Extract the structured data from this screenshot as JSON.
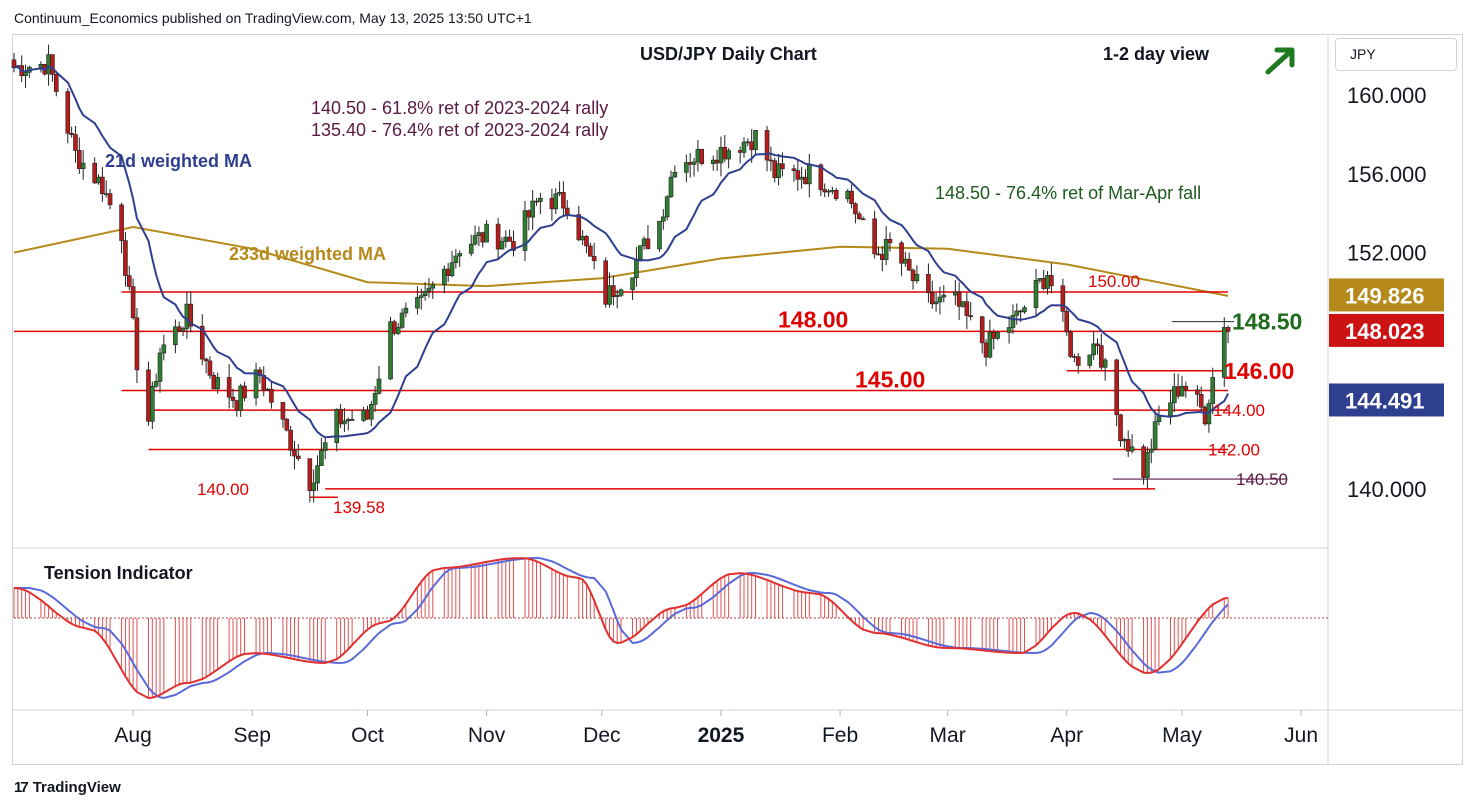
{
  "header": {
    "publisher_line": "Continuum_Economics published on TradingView.com, May 13, 2025 13:50 UTC+1",
    "currency": "JPY"
  },
  "footer": {
    "brand": "TradingView",
    "logo": "17"
  },
  "colors": {
    "candle_up": "#2e7d32",
    "candle_down": "#b71c1c",
    "ma21": "#2f3f8f",
    "ma233": "#b58a1a",
    "level": "#e00000",
    "fib150": "#5a1a44",
    "arrow": "#1e7a1e",
    "current": "#cc1212",
    "ma233_badge": "#b58a1a",
    "ma21_badge": "#2f3f8f"
  },
  "chart_data": {
    "type": "candlestick",
    "title": "USD/JPY Daily Chart",
    "subtitle": "1-2 day view",
    "direction": "up-arrow-icon",
    "ylim": [
      137.0,
      163.0
    ],
    "y_ticks": [
      "160.000",
      "156.000",
      "152.000",
      "140.000"
    ],
    "x_ticks": [
      {
        "label": "Aug",
        "date": "2024-08-01",
        "bold": false
      },
      {
        "label": "Sep",
        "date": "2024-09-01",
        "bold": false
      },
      {
        "label": "Oct",
        "date": "2024-10-01",
        "bold": false
      },
      {
        "label": "Nov",
        "date": "2024-11-01",
        "bold": false
      },
      {
        "label": "Dec",
        "date": "2024-12-01",
        "bold": false
      },
      {
        "label": "2025",
        "date": "2025-01-01",
        "bold": true
      },
      {
        "label": "Feb",
        "date": "2025-02-01",
        "bold": false
      },
      {
        "label": "Mar",
        "date": "2025-03-01",
        "bold": false
      },
      {
        "label": "Apr",
        "date": "2025-04-01",
        "bold": false
      },
      {
        "label": "May",
        "date": "2025-05-01",
        "bold": false
      },
      {
        "label": "Jun",
        "date": "2025-06-01",
        "bold": false
      }
    ],
    "x_range": [
      "2024-07-01",
      "2025-06-08"
    ],
    "closes": [
      {
        "date": "2024-07-01",
        "close": 161.4
      },
      {
        "date": "2024-07-10",
        "close": 161.6
      },
      {
        "date": "2024-07-17",
        "close": 157.0
      },
      {
        "date": "2024-07-24",
        "close": 155.4
      },
      {
        "date": "2024-07-29",
        "close": 153.0
      },
      {
        "date": "2024-08-02",
        "close": 146.5
      },
      {
        "date": "2024-08-05",
        "close": 143.5
      },
      {
        "date": "2024-08-08",
        "close": 147.0
      },
      {
        "date": "2024-08-15",
        "close": 148.8
      },
      {
        "date": "2024-08-22",
        "close": 145.5
      },
      {
        "date": "2024-08-28",
        "close": 144.5
      },
      {
        "date": "2024-09-03",
        "close": 145.8
      },
      {
        "date": "2024-09-10",
        "close": 142.8
      },
      {
        "date": "2024-09-16",
        "close": 140.4
      },
      {
        "date": "2024-09-23",
        "close": 143.5
      },
      {
        "date": "2024-10-01",
        "close": 143.6
      },
      {
        "date": "2024-10-07",
        "close": 148.2
      },
      {
        "date": "2024-10-15",
        "close": 149.3
      },
      {
        "date": "2024-10-25",
        "close": 152.3
      },
      {
        "date": "2024-11-01",
        "close": 152.9
      },
      {
        "date": "2024-11-08",
        "close": 152.6
      },
      {
        "date": "2024-11-15",
        "close": 154.8
      },
      {
        "date": "2024-11-22",
        "close": 154.5
      },
      {
        "date": "2024-12-02",
        "close": 149.7
      },
      {
        "date": "2024-12-09",
        "close": 151.3
      },
      {
        "date": "2024-12-16",
        "close": 153.6
      },
      {
        "date": "2024-12-20",
        "close": 156.6
      },
      {
        "date": "2025-01-03",
        "close": 157.3
      },
      {
        "date": "2025-01-10",
        "close": 157.9
      },
      {
        "date": "2025-01-15",
        "close": 156.0
      },
      {
        "date": "2025-01-24",
        "close": 156.0
      },
      {
        "date": "2025-02-03",
        "close": 155.0
      },
      {
        "date": "2025-02-10",
        "close": 151.9
      },
      {
        "date": "2025-02-14",
        "close": 152.3
      },
      {
        "date": "2025-02-24",
        "close": 149.5
      },
      {
        "date": "2025-03-03",
        "close": 149.5
      },
      {
        "date": "2025-03-11",
        "close": 147.2
      },
      {
        "date": "2025-03-19",
        "close": 148.7
      },
      {
        "date": "2025-03-27",
        "close": 151.0
      },
      {
        "date": "2025-04-03",
        "close": 146.5
      },
      {
        "date": "2025-04-09",
        "close": 147.5
      },
      {
        "date": "2025-04-15",
        "close": 143.0
      },
      {
        "date": "2025-04-21",
        "close": 140.9
      },
      {
        "date": "2025-04-25",
        "close": 143.6
      },
      {
        "date": "2025-05-01",
        "close": 145.4
      },
      {
        "date": "2025-05-07",
        "close": 143.8
      },
      {
        "date": "2025-05-12",
        "close": 148.5
      },
      {
        "date": "2025-05-13",
        "close": 148.0
      }
    ],
    "series": [
      {
        "name": "21d weighted MA",
        "label_color": "#2f3f8f"
      },
      {
        "name": "233d weighted MA",
        "label_color": "#b58a1a"
      }
    ],
    "ma233_points": [
      {
        "date": "2024-07-01",
        "value": 152.0
      },
      {
        "date": "2024-08-01",
        "value": 153.3
      },
      {
        "date": "2024-09-01",
        "value": 152.2
      },
      {
        "date": "2024-10-01",
        "value": 150.5
      },
      {
        "date": "2024-11-01",
        "value": 150.3
      },
      {
        "date": "2024-12-01",
        "value": 150.7
      },
      {
        "date": "2025-01-01",
        "value": 151.7
      },
      {
        "date": "2025-02-01",
        "value": 152.3
      },
      {
        "date": "2025-03-01",
        "value": 152.2
      },
      {
        "date": "2025-04-01",
        "value": 151.4
      },
      {
        "date": "2025-05-13",
        "value": 149.8
      }
    ],
    "levels": [
      {
        "value": 150.0,
        "label": "150.00",
        "from": "2024-07-29",
        "to": "2025-05-13"
      },
      {
        "value": 148.0,
        "label": "148.00",
        "from": "2024-07-01",
        "to": "2025-05-13"
      },
      {
        "value": 146.0,
        "label": "146.00",
        "from": "2025-04-01",
        "to": "2025-05-12"
      },
      {
        "value": 145.0,
        "label": "145.00",
        "from": "2024-07-29",
        "to": "2025-05-13"
      },
      {
        "value": 144.0,
        "label": "144.00",
        "from": "2024-08-05",
        "to": "2025-05-13"
      },
      {
        "value": 142.0,
        "label": "142.00",
        "from": "2024-08-05",
        "to": "2025-05-13"
      },
      {
        "value": 140.0,
        "label": "140.00",
        "from": "2024-09-20",
        "to": "2025-04-24"
      }
    ],
    "resistance": {
      "value": 148.5,
      "label": "148.50",
      "from": "2025-05-01",
      "to": "2025-05-13"
    },
    "support_140_50": {
      "value": 140.5,
      "label": "140.50",
      "from": "2025-04-13",
      "to": "2025-05-18"
    },
    "low_label": {
      "value": 139.58,
      "label": "139.58",
      "date": "2024-09-16"
    },
    "annotations": [
      "140.50 - 61.8% ret of 2023-2024 rally",
      "135.40 - 76.4% ret of 2023-2024 rally",
      "148.50 - 76.4% ret of Mar-Apr fall"
    ],
    "badges": [
      {
        "value": 149.826,
        "label": "149.826",
        "color": "#b58a1a"
      },
      {
        "value": 148.023,
        "label": "148.023",
        "color": "#cc1212"
      },
      {
        "value": 144.491,
        "label": "144.491",
        "color": "#2f3f8f"
      }
    ],
    "indicator": {
      "title": "Tension Indicator",
      "points": [
        {
          "date": "2024-07-01",
          "value": 0.6
        },
        {
          "date": "2024-07-20",
          "value": -0.2
        },
        {
          "date": "2024-08-05",
          "value": -1.6
        },
        {
          "date": "2024-08-15",
          "value": -1.3
        },
        {
          "date": "2024-09-01",
          "value": -0.7
        },
        {
          "date": "2024-09-20",
          "value": -0.9
        },
        {
          "date": "2024-10-05",
          "value": -0.1
        },
        {
          "date": "2024-10-20",
          "value": 1.0
        },
        {
          "date": "2024-11-10",
          "value": 1.2
        },
        {
          "date": "2024-11-25",
          "value": 0.8
        },
        {
          "date": "2024-12-05",
          "value": -0.5
        },
        {
          "date": "2024-12-20",
          "value": 0.2
        },
        {
          "date": "2025-01-05",
          "value": 0.9
        },
        {
          "date": "2025-01-25",
          "value": 0.5
        },
        {
          "date": "2025-02-10",
          "value": -0.3
        },
        {
          "date": "2025-03-01",
          "value": -0.6
        },
        {
          "date": "2025-03-20",
          "value": -0.7
        },
        {
          "date": "2025-04-03",
          "value": 0.1
        },
        {
          "date": "2025-04-22",
          "value": -1.1
        },
        {
          "date": "2025-05-13",
          "value": 0.4
        }
      ]
    }
  }
}
